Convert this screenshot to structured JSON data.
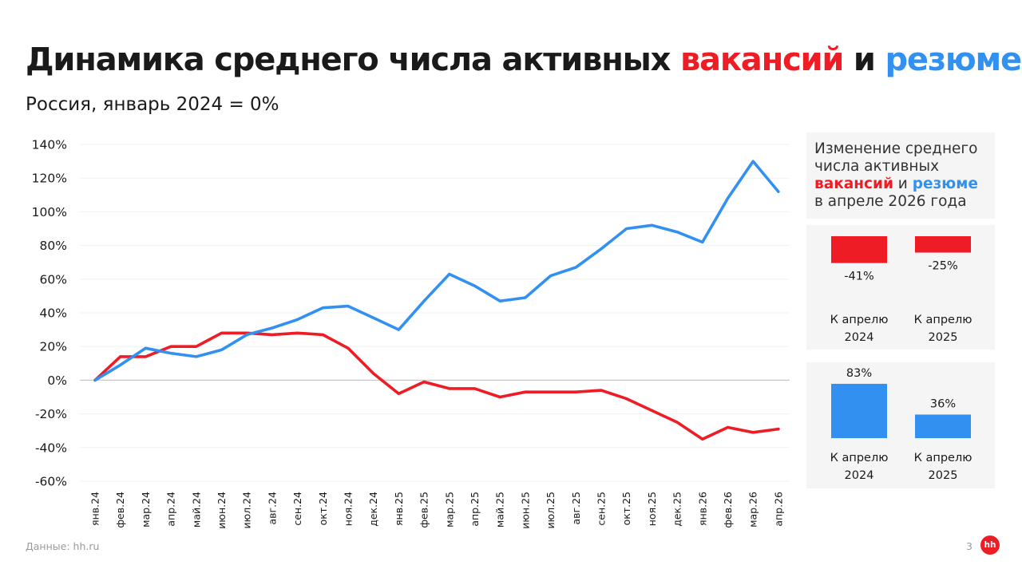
{
  "title": {
    "part1": "Динамика среднего числа активных ",
    "vacancies": "вакансий",
    "and": " и ",
    "resumes": "резюме"
  },
  "subtitle": "Россия, январь 2024 = 0%",
  "colors": {
    "vacancies": "#ee1c25",
    "resumes": "#3291f0",
    "panel_bg": "#f5f5f5"
  },
  "chart_data": [
    {
      "type": "line",
      "categories": [
        "янв.24",
        "фев.24",
        "мар.24",
        "апр.24",
        "май.24",
        "июн.24",
        "июл.24",
        "авг.24",
        "сен.24",
        "окт.24",
        "ноя.24",
        "дек.24",
        "янв.25",
        "фев.25",
        "мар.25",
        "апр.25",
        "май.25",
        "июн.25",
        "июл.25",
        "авг.25",
        "сен.25",
        "окт.25",
        "ноя.25",
        "дек.25",
        "янв.26",
        "фев.26",
        "мар.26",
        "апр.26"
      ],
      "series": [
        {
          "name": "вакансий",
          "color": "#ee1c25",
          "values": [
            0,
            14,
            14,
            20,
            20,
            28,
            28,
            27,
            28,
            27,
            19,
            4,
            -8,
            -1,
            -5,
            -5,
            -10,
            -7,
            -7,
            -7,
            -6,
            -11,
            -18,
            -25,
            -35,
            -28,
            -31,
            -29
          ]
        },
        {
          "name": "резюме",
          "color": "#3291f0",
          "values": [
            0,
            9,
            19,
            16,
            14,
            18,
            27,
            31,
            36,
            43,
            44,
            37,
            30,
            47,
            63,
            56,
            47,
            49,
            62,
            67,
            78,
            90,
            92,
            88,
            82,
            108,
            130,
            112
          ]
        }
      ],
      "yticks": [
        "140%",
        "120%",
        "100%",
        "80%",
        "60%",
        "40%",
        "20%",
        "0%",
        "-20%",
        "-40%",
        "-60%"
      ],
      "ylim": [
        -60,
        140
      ],
      "grid": true,
      "zero_line": true
    },
    {
      "type": "bar",
      "series_name": "вакансий",
      "color": "#ee1c25",
      "categories": [
        "К апрелю 2024",
        "К апрелю 2025"
      ],
      "values": [
        -41,
        -25
      ]
    },
    {
      "type": "bar",
      "series_name": "резюме",
      "color": "#3291f0",
      "categories": [
        "К апрелю 2024",
        "К апрелю 2025"
      ],
      "values": [
        83,
        36
      ]
    }
  ],
  "side_panel": {
    "heading_line1": "Изменение среднего",
    "heading_line2": "числа активных",
    "heading_vacancies": "вакансий",
    "heading_and": " и ",
    "heading_resumes": "резюме",
    "heading_line4": "в апреле 2026 года",
    "vacancy_bars": [
      {
        "value_label": "-41%",
        "label_line1": "К апрелю",
        "label_line2": "2024",
        "value": -41
      },
      {
        "value_label": "-25%",
        "label_line1": "К апрелю",
        "label_line2": "2025",
        "value": -25
      }
    ],
    "resume_bars": [
      {
        "value_label": "83%",
        "label_line1": "К апрелю",
        "label_line2": "2024",
        "value": 83
      },
      {
        "value_label": "36%",
        "label_line1": "К апрелю",
        "label_line2": "2025",
        "value": 36
      }
    ]
  },
  "footer": {
    "source": "Данные: hh.ru",
    "page": "3",
    "logo": "hh"
  }
}
